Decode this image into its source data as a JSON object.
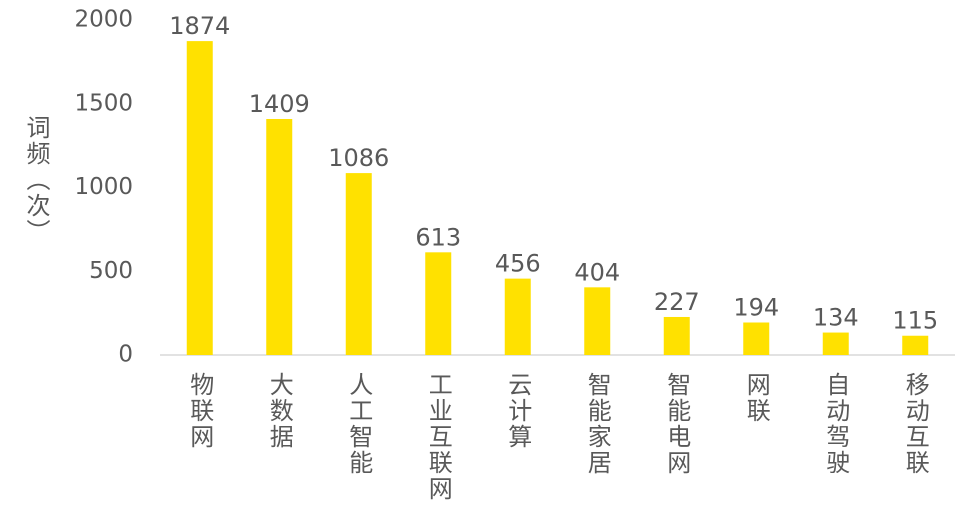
{
  "chart_data": {
    "type": "bar",
    "y_axis_label": "词频（次）",
    "categories": [
      "物联网",
      "大数据",
      "人工智能",
      "工业互联网",
      "云计算",
      "智能家居",
      "智能电网",
      "网联",
      "自动驾驶",
      "移动互联"
    ],
    "values": [
      1874,
      1409,
      1086,
      613,
      456,
      404,
      227,
      194,
      134,
      115
    ],
    "color": "#ffe100",
    "ylim": [
      0,
      2000
    ],
    "yticks": [
      0,
      500,
      1000,
      1500,
      2000
    ],
    "grid": false
  }
}
